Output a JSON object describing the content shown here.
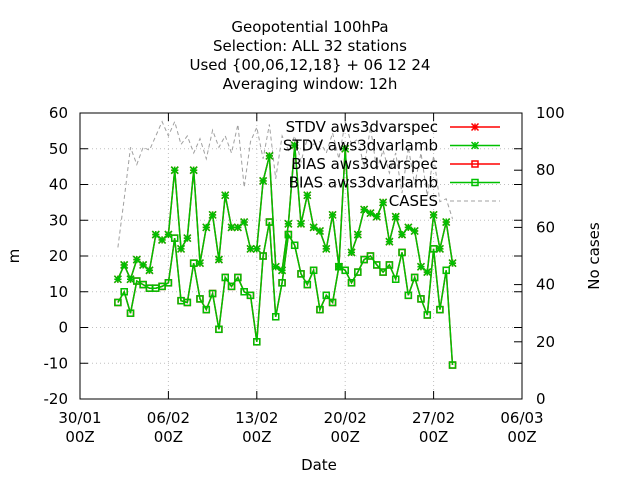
{
  "chart_data": {
    "type": "line",
    "title_lines": [
      "Geopotential 100hPa",
      "Selection: ALL      32 stations",
      "Used {00,06,12,18} + 06 12 24",
      "Averaging window: 12h"
    ],
    "xlabel": "Date",
    "ylabel": "m",
    "y2label": "No cases",
    "x_ticks": [
      {
        "line1": "30/01",
        "line2": "00Z",
        "day": 0
      },
      {
        "line1": "06/02",
        "line2": "00Z",
        "day": 7
      },
      {
        "line1": "13/02",
        "line2": "00Z",
        "day": 14
      },
      {
        "line1": "20/02",
        "line2": "00Z",
        "day": 21
      },
      {
        "line1": "27/02",
        "line2": "00Z",
        "day": 28
      },
      {
        "line1": "06/03",
        "line2": "00Z",
        "day": 35
      }
    ],
    "y_ticks": [
      "-20",
      "-10",
      "0",
      "10",
      "20",
      "30",
      "40",
      "50",
      "60"
    ],
    "ylim": [
      -20,
      60
    ],
    "y2_ticks": [
      "0",
      "20",
      "40",
      "60",
      "80",
      "100"
    ],
    "y2lim": [
      0,
      100
    ],
    "xlim_days": [
      0,
      35
    ],
    "grid": true,
    "legend_position": "top-right",
    "colors": {
      "stdv_varspec": "#ff0000",
      "stdv_varlamb": "#00c000",
      "bias_varspec": "#ff0000",
      "bias_varlamb": "#00c000",
      "cases": "#a0a0a0",
      "grid": "#c0c0c0"
    },
    "series": [
      {
        "name": "STDV aws3dvarspec",
        "key": "stdv_varspec",
        "marker": "star",
        "style": "solid",
        "axis": "y"
      },
      {
        "name": "STDV aws3dvarlamb",
        "key": "stdv_varlamb",
        "marker": "star",
        "style": "solid",
        "axis": "y"
      },
      {
        "name": "BIAS aws3dvarspec",
        "key": "bias_varspec",
        "marker": "square",
        "style": "solid",
        "axis": "y"
      },
      {
        "name": "BIAS aws3dvarlamb",
        "key": "bias_varlamb",
        "marker": "square",
        "style": "solid",
        "axis": "y"
      },
      {
        "name": "CASES",
        "key": "cases",
        "marker": "none",
        "style": "dashed",
        "axis": "y2"
      }
    ],
    "x_days": [
      3.0,
      3.5,
      4.0,
      4.5,
      5.0,
      5.5,
      6.0,
      6.5,
      7.0,
      7.5,
      8.0,
      8.5,
      9.0,
      9.5,
      10.0,
      10.5,
      11.0,
      11.5,
      12.0,
      12.5,
      13.0,
      13.5,
      14.0,
      14.5,
      15.0,
      15.5,
      16.0,
      16.5,
      17.0,
      17.5,
      18.0,
      18.5,
      19.0,
      19.5,
      20.0,
      20.5,
      21.0,
      21.5,
      22.0,
      22.5,
      23.0,
      23.5,
      24.0,
      24.5,
      25.0,
      25.5,
      26.0,
      26.5,
      27.0,
      27.5,
      28.0,
      28.5,
      29.0,
      29.5
    ],
    "stdv_values": [
      13.5,
      17.5,
      13.5,
      19,
      17.5,
      16,
      26,
      24.5,
      26,
      44,
      22,
      25,
      44,
      18,
      28,
      31.5,
      19,
      37,
      28,
      28,
      29.5,
      22,
      22,
      41,
      48,
      17,
      16,
      29,
      51,
      29,
      37,
      28,
      27,
      22,
      31.5,
      17,
      50,
      21,
      26,
      33,
      32,
      31,
      35,
      24,
      31,
      26,
      28,
      27,
      17,
      15.5,
      31.5,
      22,
      29.5,
      18
    ],
    "bias_values": [
      7,
      10,
      4,
      13,
      12,
      11,
      11,
      11.5,
      12.5,
      25,
      7.5,
      7,
      18,
      8,
      5,
      9.5,
      -0.5,
      14,
      11.5,
      14,
      10,
      9,
      -4,
      20,
      29.5,
      3,
      12.5,
      26,
      23,
      15,
      12,
      16,
      5,
      9,
      7,
      17,
      16,
      12.5,
      15.5,
      19,
      20,
      17.5,
      15.5,
      17.5,
      13.5,
      21,
      9,
      14,
      8,
      3.5,
      22,
      5,
      16,
      -10.5
    ],
    "cases_values": [
      53,
      70,
      88,
      82,
      88,
      87,
      92,
      97,
      92,
      97,
      89,
      92,
      86,
      91,
      84,
      94,
      88,
      92,
      86,
      96,
      74,
      90,
      95,
      84,
      96,
      77,
      92,
      87,
      92,
      83,
      91,
      89,
      90,
      86,
      93,
      84,
      97,
      89,
      91,
      81,
      95,
      80,
      87,
      79,
      86,
      72,
      88,
      75,
      86,
      71,
      85,
      69,
      70,
      63
    ]
  }
}
